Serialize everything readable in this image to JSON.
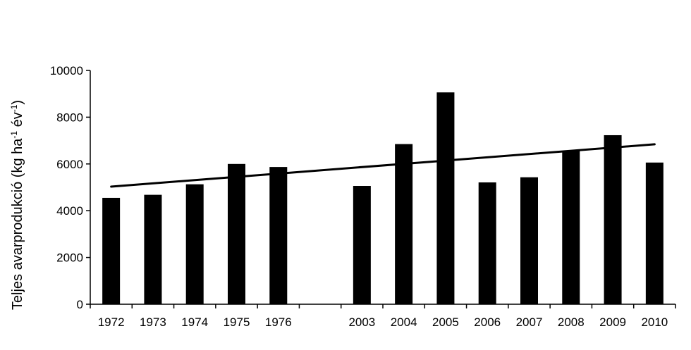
{
  "chart_data": {
    "type": "bar",
    "categories": [
      "1972",
      "1973",
      "1974",
      "1975",
      "1976",
      "",
      "2003",
      "2004",
      "2005",
      "2006",
      "2007",
      "2008",
      "2009",
      "2010"
    ],
    "values": [
      4550,
      4680,
      5130,
      6000,
      5870,
      null,
      5060,
      6850,
      9060,
      5210,
      5430,
      6560,
      7230,
      6060
    ],
    "ylim": [
      0,
      10000
    ],
    "yticks": [
      0,
      2000,
      4000,
      6000,
      8000,
      10000
    ],
    "ylabel": {
      "main": "Teljes avarprodukció (kg ha",
      "exp1": "-1",
      "mid": " év",
      "exp2": "-1",
      "end": ")"
    },
    "trendline": {
      "start": 5030,
      "end": 6840
    },
    "bar_color": "#000000",
    "grid": false
  }
}
